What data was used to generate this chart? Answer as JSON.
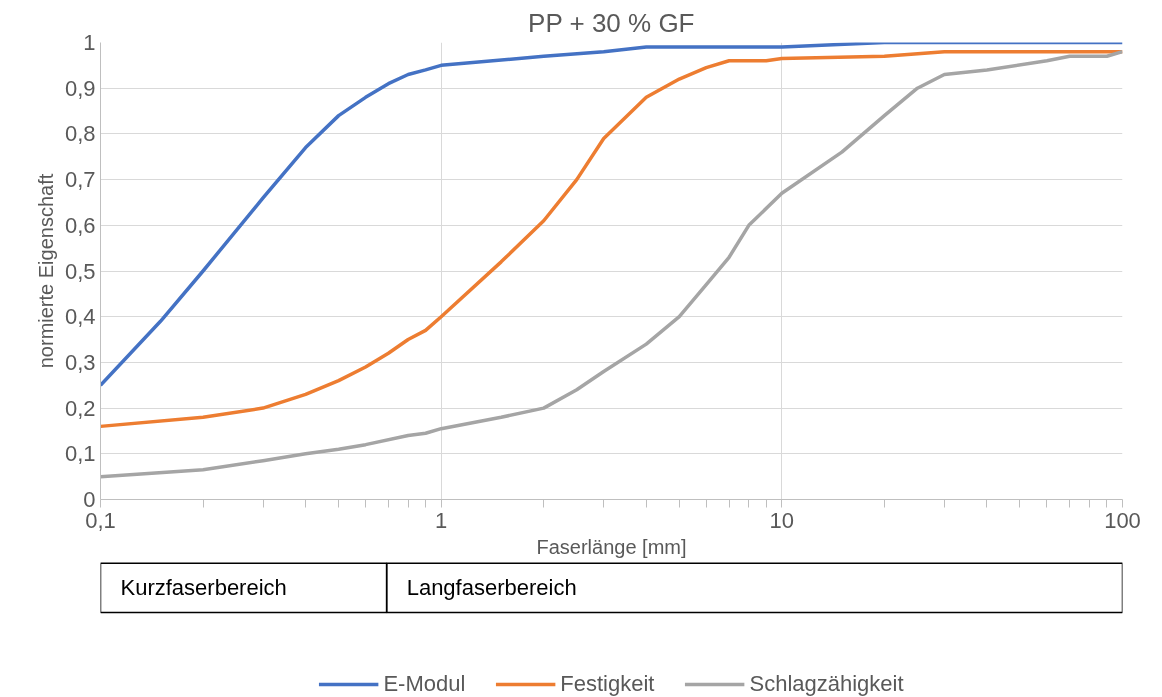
{
  "chart_data": [
    {
      "type": "line",
      "title": "PP + 30 % GF",
      "xlabel": "Faserlänge [mm]",
      "ylabel": "normierte Eigenschaft",
      "log": "x",
      "grid": true,
      "legend": "bottom",
      "marker": "none",
      "line_style": "solid",
      "xlim": [
        0.1,
        100
      ],
      "xticks": [
        {
          "value": 0.1,
          "label": "0,1"
        },
        1,
        10,
        100
      ],
      "ylim": [
        0,
        1
      ],
      "yticks": [
        0,
        {
          "value": 0.1,
          "label": "0,1"
        },
        {
          "value": 0.2,
          "label": "0,2"
        },
        {
          "value": 0.3,
          "label": "0,3"
        },
        {
          "value": 0.4,
          "label": "0,4"
        },
        {
          "value": 0.5,
          "label": "0,5"
        },
        {
          "value": 0.6,
          "label": "0,6"
        },
        {
          "value": 0.7,
          "label": "0,7"
        },
        {
          "value": 0.8,
          "label": "0,8"
        },
        {
          "value": 0.9,
          "label": "0,9"
        },
        1
      ],
      "series": [
        {
          "name": "E-Modul",
          "color": "#4472c4",
          "x": [
            0.1,
            0.15,
            0.2,
            0.3,
            0.4,
            0.5,
            0.6,
            0.7,
            0.8,
            0.9,
            1,
            2,
            3,
            4,
            5,
            7,
            10,
            20,
            50,
            100
          ],
          "values": [
            0.25,
            0.39,
            0.5,
            0.66,
            0.77,
            0.84,
            0.88,
            0.91,
            0.93,
            0.94,
            0.95,
            0.97,
            0.98,
            0.99,
            0.99,
            0.99,
            0.99,
            1,
            1,
            1
          ]
        },
        {
          "name": "Festigkeit",
          "color": "#ed7d31",
          "x": [
            0.1,
            0.2,
            0.3,
            0.4,
            0.5,
            0.6,
            0.7,
            0.8,
            0.9,
            1,
            1.5,
            2,
            2.5,
            3,
            4,
            5,
            6,
            7,
            9,
            10,
            20,
            30,
            100
          ],
          "values": [
            0.16,
            0.18,
            0.2,
            0.23,
            0.26,
            0.29,
            0.32,
            0.35,
            0.37,
            0.4,
            0.52,
            0.61,
            0.7,
            0.79,
            0.88,
            0.92,
            0.945,
            0.96,
            0.96,
            0.965,
            0.97,
            0.98,
            0.98
          ]
        },
        {
          "name": "Schlagzähigkeit",
          "color": "#a5a5a5",
          "x": [
            0.1,
            0.2,
            0.3,
            0.4,
            0.5,
            0.6,
            0.8,
            0.9,
            1,
            1.5,
            2,
            2.5,
            3,
            4,
            5,
            6,
            7,
            8,
            10,
            15,
            20,
            25,
            30,
            40,
            60,
            70,
            90,
            100
          ],
          "values": [
            0.05,
            0.065,
            0.085,
            0.1,
            0.11,
            0.12,
            0.14,
            0.145,
            0.155,
            0.18,
            0.2,
            0.24,
            0.28,
            0.34,
            0.4,
            0.47,
            0.53,
            0.6,
            0.67,
            0.76,
            0.84,
            0.9,
            0.93,
            0.94,
            0.96,
            0.97,
            0.97,
            0.98
          ]
        }
      ]
    },
    {
      "type": "other",
      "annotations": [
        "Kurzfaserbereich",
        "Langfaserbereich"
      ]
    }
  ]
}
